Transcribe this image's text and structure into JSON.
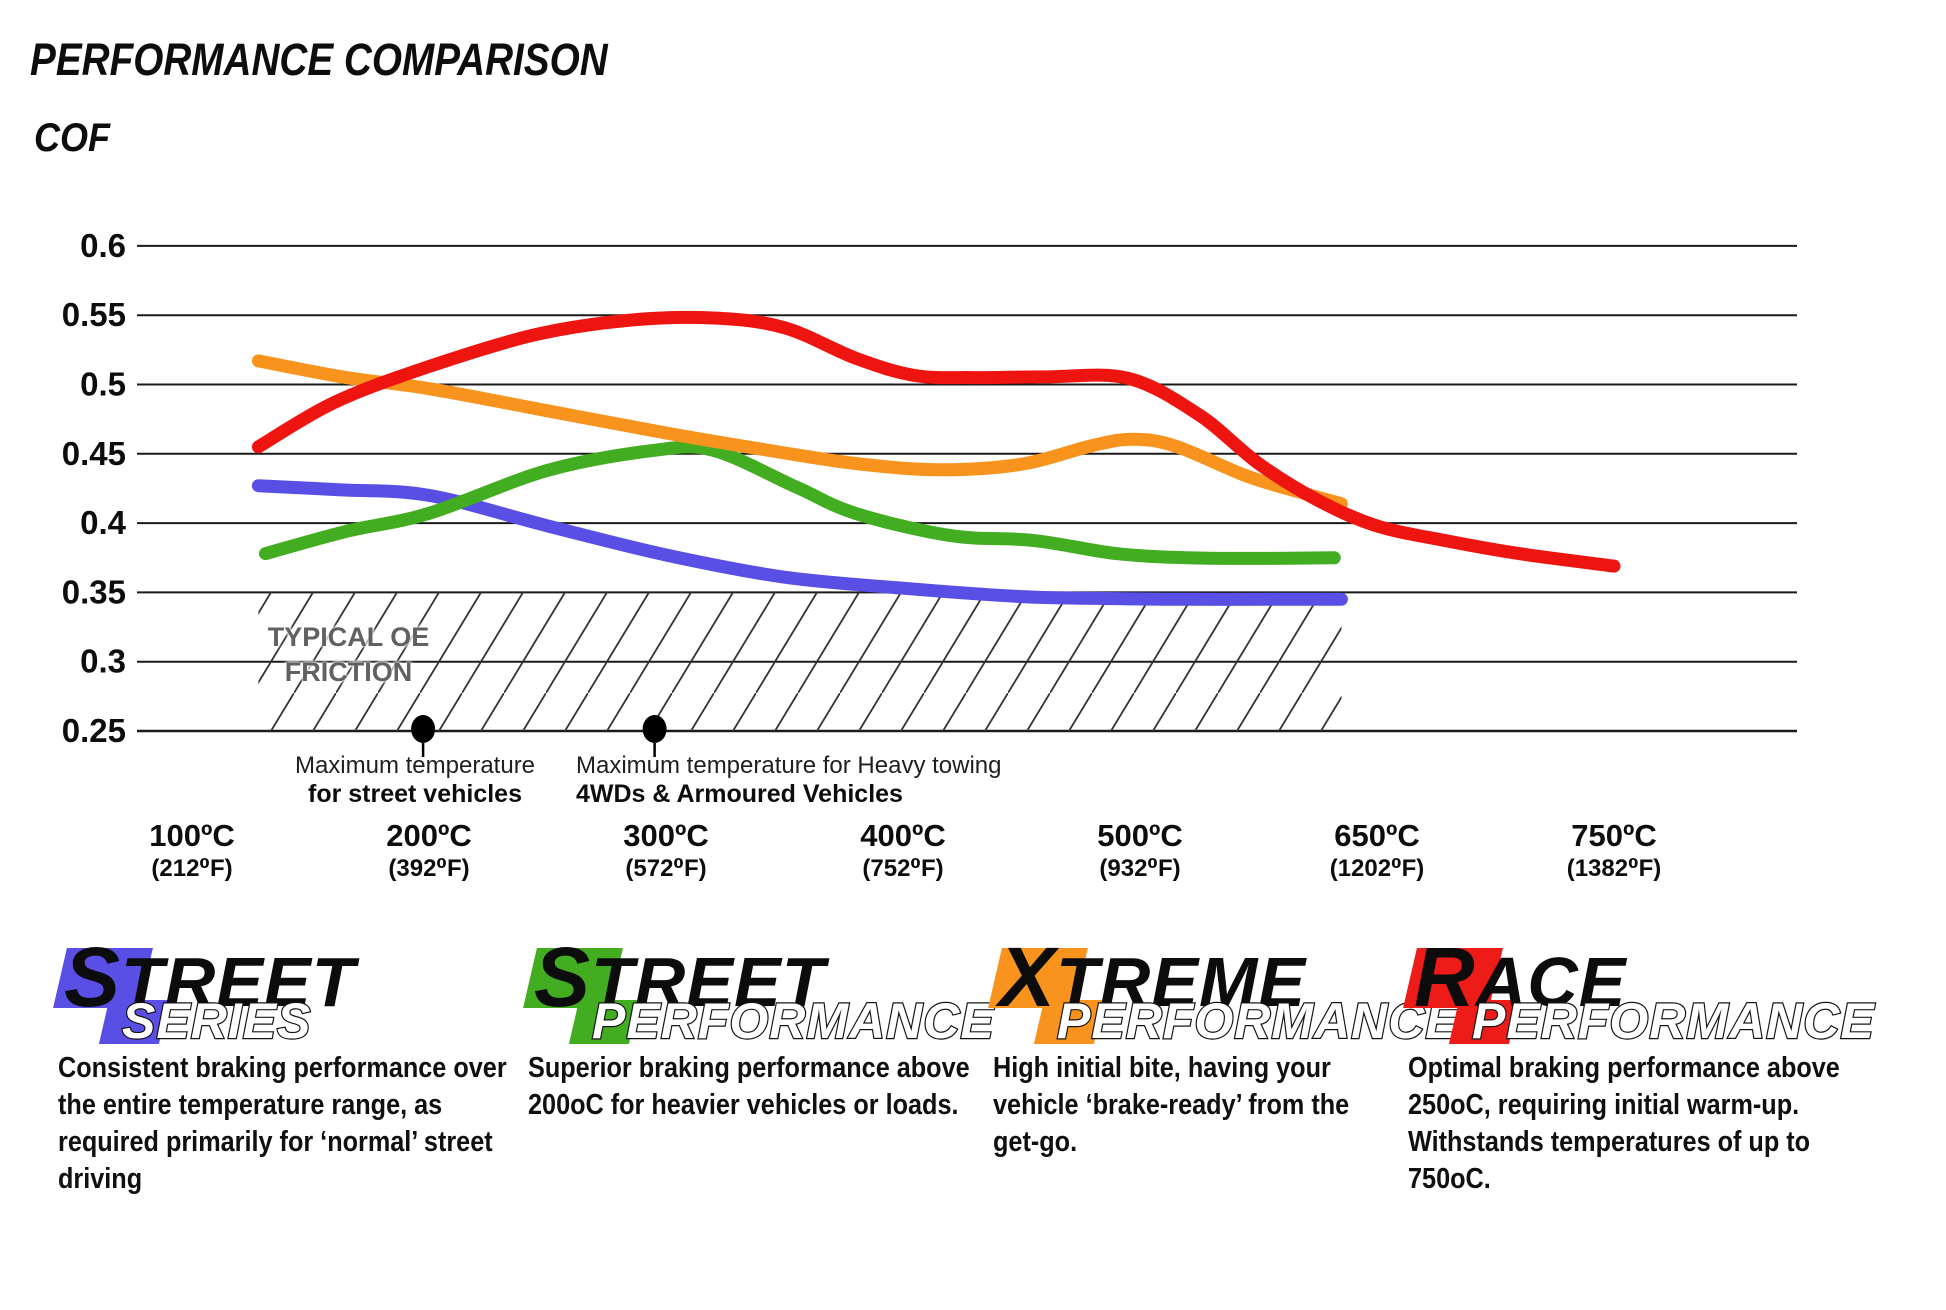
{
  "title": "PERFORMANCE COMPARISON",
  "y_axis_label": "COF",
  "oe_band_label": {
    "line1": "TYPICAL OE",
    "line2": "FRICTION"
  },
  "annotations": {
    "street_max": {
      "line1": "Maximum temperature",
      "line2": "for street vehicles"
    },
    "towing_max": {
      "line1": "Maximum temperature for Heavy towing",
      "line2": "4WDs & Armoured Vehicles"
    }
  },
  "chart_data": {
    "type": "line",
    "title": "PERFORMANCE COMPARISON",
    "ylabel": "COF",
    "grid": true,
    "ylim": [
      0.25,
      0.6
    ],
    "y_ticks": [
      "0.6",
      "0.55",
      "0.5",
      "0.45",
      "0.4",
      "0.35",
      "0.3",
      "0.25"
    ],
    "tick_temperatures_c": [
      100,
      200,
      300,
      400,
      500,
      650,
      750
    ],
    "x_categories_c": [
      "100ºC",
      "200ºC",
      "300ºC",
      "400ºC",
      "500ºC",
      "650ºC",
      "750ºC"
    ],
    "x_categories_f": [
      "(212⁰F)",
      "(392⁰F)",
      "(572⁰F)",
      "(752⁰F)",
      "(932⁰F)",
      "(1202⁰F)",
      "(1382⁰F)"
    ],
    "x_unit": "category_index (fractional positions between evenly spaced temperature ticks)",
    "oe_band": {
      "label": "TYPICAL OE FRICTION",
      "range": [
        0.25,
        0.35
      ],
      "x_span": [
        0.28,
        4.85
      ]
    },
    "annotation_dots": [
      {
        "t": 0.975,
        "cof": 0.25,
        "label": "Maximum temperature for street vehicles"
      },
      {
        "t": 1.952,
        "cof": 0.25,
        "label": "Maximum temperature for Heavy towing 4WDs & Armoured Vehicles"
      }
    ],
    "series": [
      {
        "name": "Street Series",
        "color": "#5a4fe4",
        "points": [
          [
            0.28,
            0.427
          ],
          [
            0.62,
            0.424
          ],
          [
            1.0,
            0.42
          ],
          [
            1.5,
            0.398
          ],
          [
            2.0,
            0.377
          ],
          [
            2.5,
            0.361
          ],
          [
            3.0,
            0.353
          ],
          [
            3.5,
            0.347
          ],
          [
            3.9,
            0.3455
          ],
          [
            4.2,
            0.345
          ],
          [
            4.55,
            0.345
          ],
          [
            4.85,
            0.345
          ]
        ]
      },
      {
        "name": "Street Performance",
        "color": "#42ad20",
        "points": [
          [
            0.31,
            0.378
          ],
          [
            0.65,
            0.394
          ],
          [
            1.0,
            0.407
          ],
          [
            1.5,
            0.438
          ],
          [
            1.95,
            0.4525
          ],
          [
            2.2,
            0.4525
          ],
          [
            2.55,
            0.426
          ],
          [
            2.8,
            0.407
          ],
          [
            3.2,
            0.391
          ],
          [
            3.55,
            0.3875
          ],
          [
            3.9,
            0.378
          ],
          [
            4.2,
            0.375
          ],
          [
            4.5,
            0.3745
          ],
          [
            4.82,
            0.375
          ]
        ]
      },
      {
        "name": "Xtreme Performance",
        "color": "#f8941d",
        "points": [
          [
            0.28,
            0.517
          ],
          [
            0.65,
            0.505
          ],
          [
            1.0,
            0.497
          ],
          [
            1.5,
            0.481
          ],
          [
            2.0,
            0.465
          ],
          [
            2.45,
            0.452
          ],
          [
            2.8,
            0.443
          ],
          [
            3.15,
            0.4385
          ],
          [
            3.5,
            0.4425
          ],
          [
            3.8,
            0.456
          ],
          [
            3.97,
            0.4605
          ],
          [
            4.15,
            0.4555
          ],
          [
            4.45,
            0.434
          ],
          [
            4.68,
            0.422
          ],
          [
            4.85,
            0.414
          ]
        ]
      },
      {
        "name": "Race Performance",
        "color": "#ee1511",
        "points": [
          [
            0.28,
            0.455
          ],
          [
            0.6,
            0.487
          ],
          [
            1.0,
            0.513
          ],
          [
            1.45,
            0.536
          ],
          [
            1.85,
            0.5465
          ],
          [
            2.2,
            0.548
          ],
          [
            2.5,
            0.541
          ],
          [
            2.8,
            0.519
          ],
          [
            3.05,
            0.5065
          ],
          [
            3.3,
            0.505
          ],
          [
            3.6,
            0.5055
          ],
          [
            3.95,
            0.5045
          ],
          [
            4.25,
            0.478
          ],
          [
            4.5,
            0.443
          ],
          [
            4.75,
            0.4165
          ],
          [
            5.0,
            0.398
          ],
          [
            5.3,
            0.387
          ],
          [
            5.6,
            0.378
          ],
          [
            6.0,
            0.369
          ]
        ]
      }
    ]
  },
  "legend": [
    {
      "top_initial": "S",
      "top_rest": "TREET",
      "bottom": "SERIES",
      "color": "#5a4fe4",
      "description": "Consistent braking performance over the entire temperature range, as required primarily for ‘normal’ street driving"
    },
    {
      "top_initial": "S",
      "top_rest": "TREET",
      "bottom": "PERFORMANCE",
      "color": "#42ad20",
      "description": "Superior braking performance above 200oC for heavier vehicles or loads."
    },
    {
      "top_initial": "X",
      "top_rest": "TREME",
      "bottom": "PERFORMANCE",
      "color": "#f8941d",
      "description": "High initial bite, having your vehicle ‘brake-ready’ from the get-go."
    },
    {
      "top_initial": "R",
      "top_rest": "ACE",
      "bottom": "PERFORMANCE",
      "color": "#ed1c18",
      "description": "Optimal braking performance above 250oC, requiring initial warm-up. Withstands temperatures of up to 750oC."
    }
  ]
}
